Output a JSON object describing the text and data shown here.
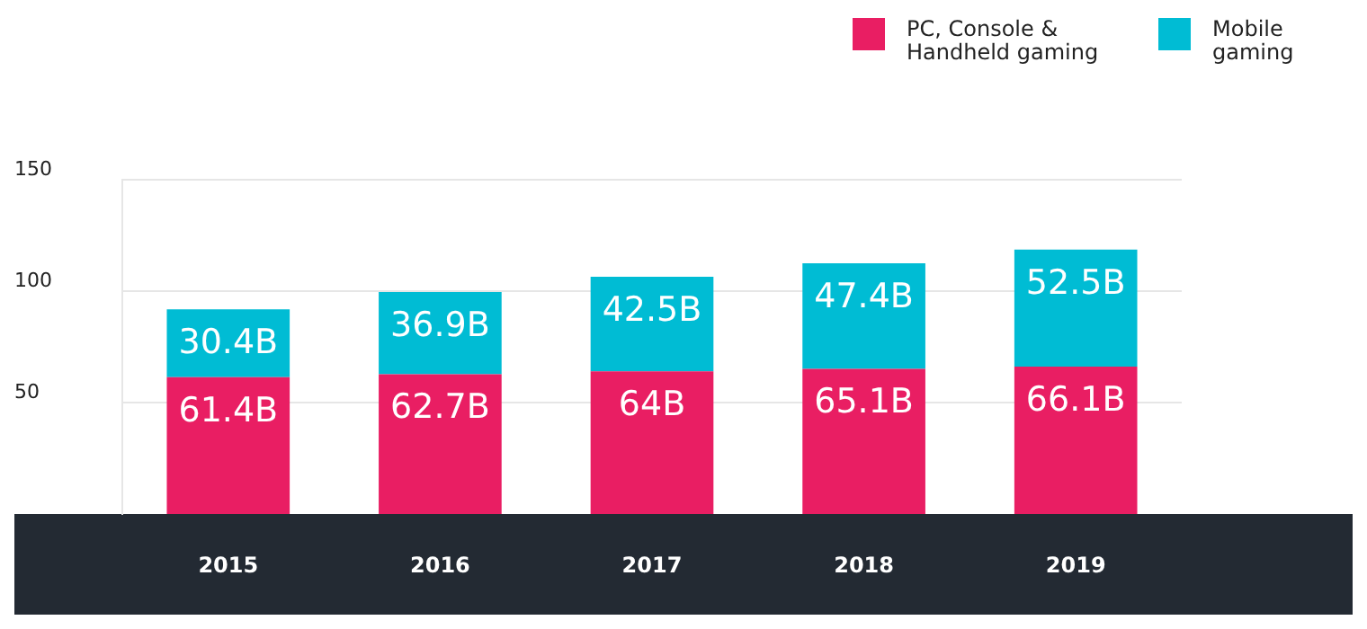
{
  "chart_data": {
    "type": "bar",
    "stacked": true,
    "categories": [
      "2015",
      "2016",
      "2017",
      "2018",
      "2019"
    ],
    "series": [
      {
        "name": "PC, Console & Handheld gaming",
        "color": "#e91e63",
        "values": [
          61.4,
          62.7,
          64,
          65.1,
          66.1
        ],
        "value_labels": [
          "61.4B",
          "62.7B",
          "64B",
          "65.1B",
          "66.1B"
        ]
      },
      {
        "name": "Mobile gaming",
        "color": "#00bcd4",
        "values": [
          30.4,
          36.9,
          42.5,
          47.4,
          52.5
        ],
        "value_labels": [
          "30.4B",
          "36.9B",
          "42.5B",
          "47.4B",
          "52.5B"
        ]
      }
    ],
    "ylim": [
      0,
      150
    ],
    "yticks": [
      50,
      100,
      150
    ],
    "grid": "y",
    "legend": "top right"
  }
}
